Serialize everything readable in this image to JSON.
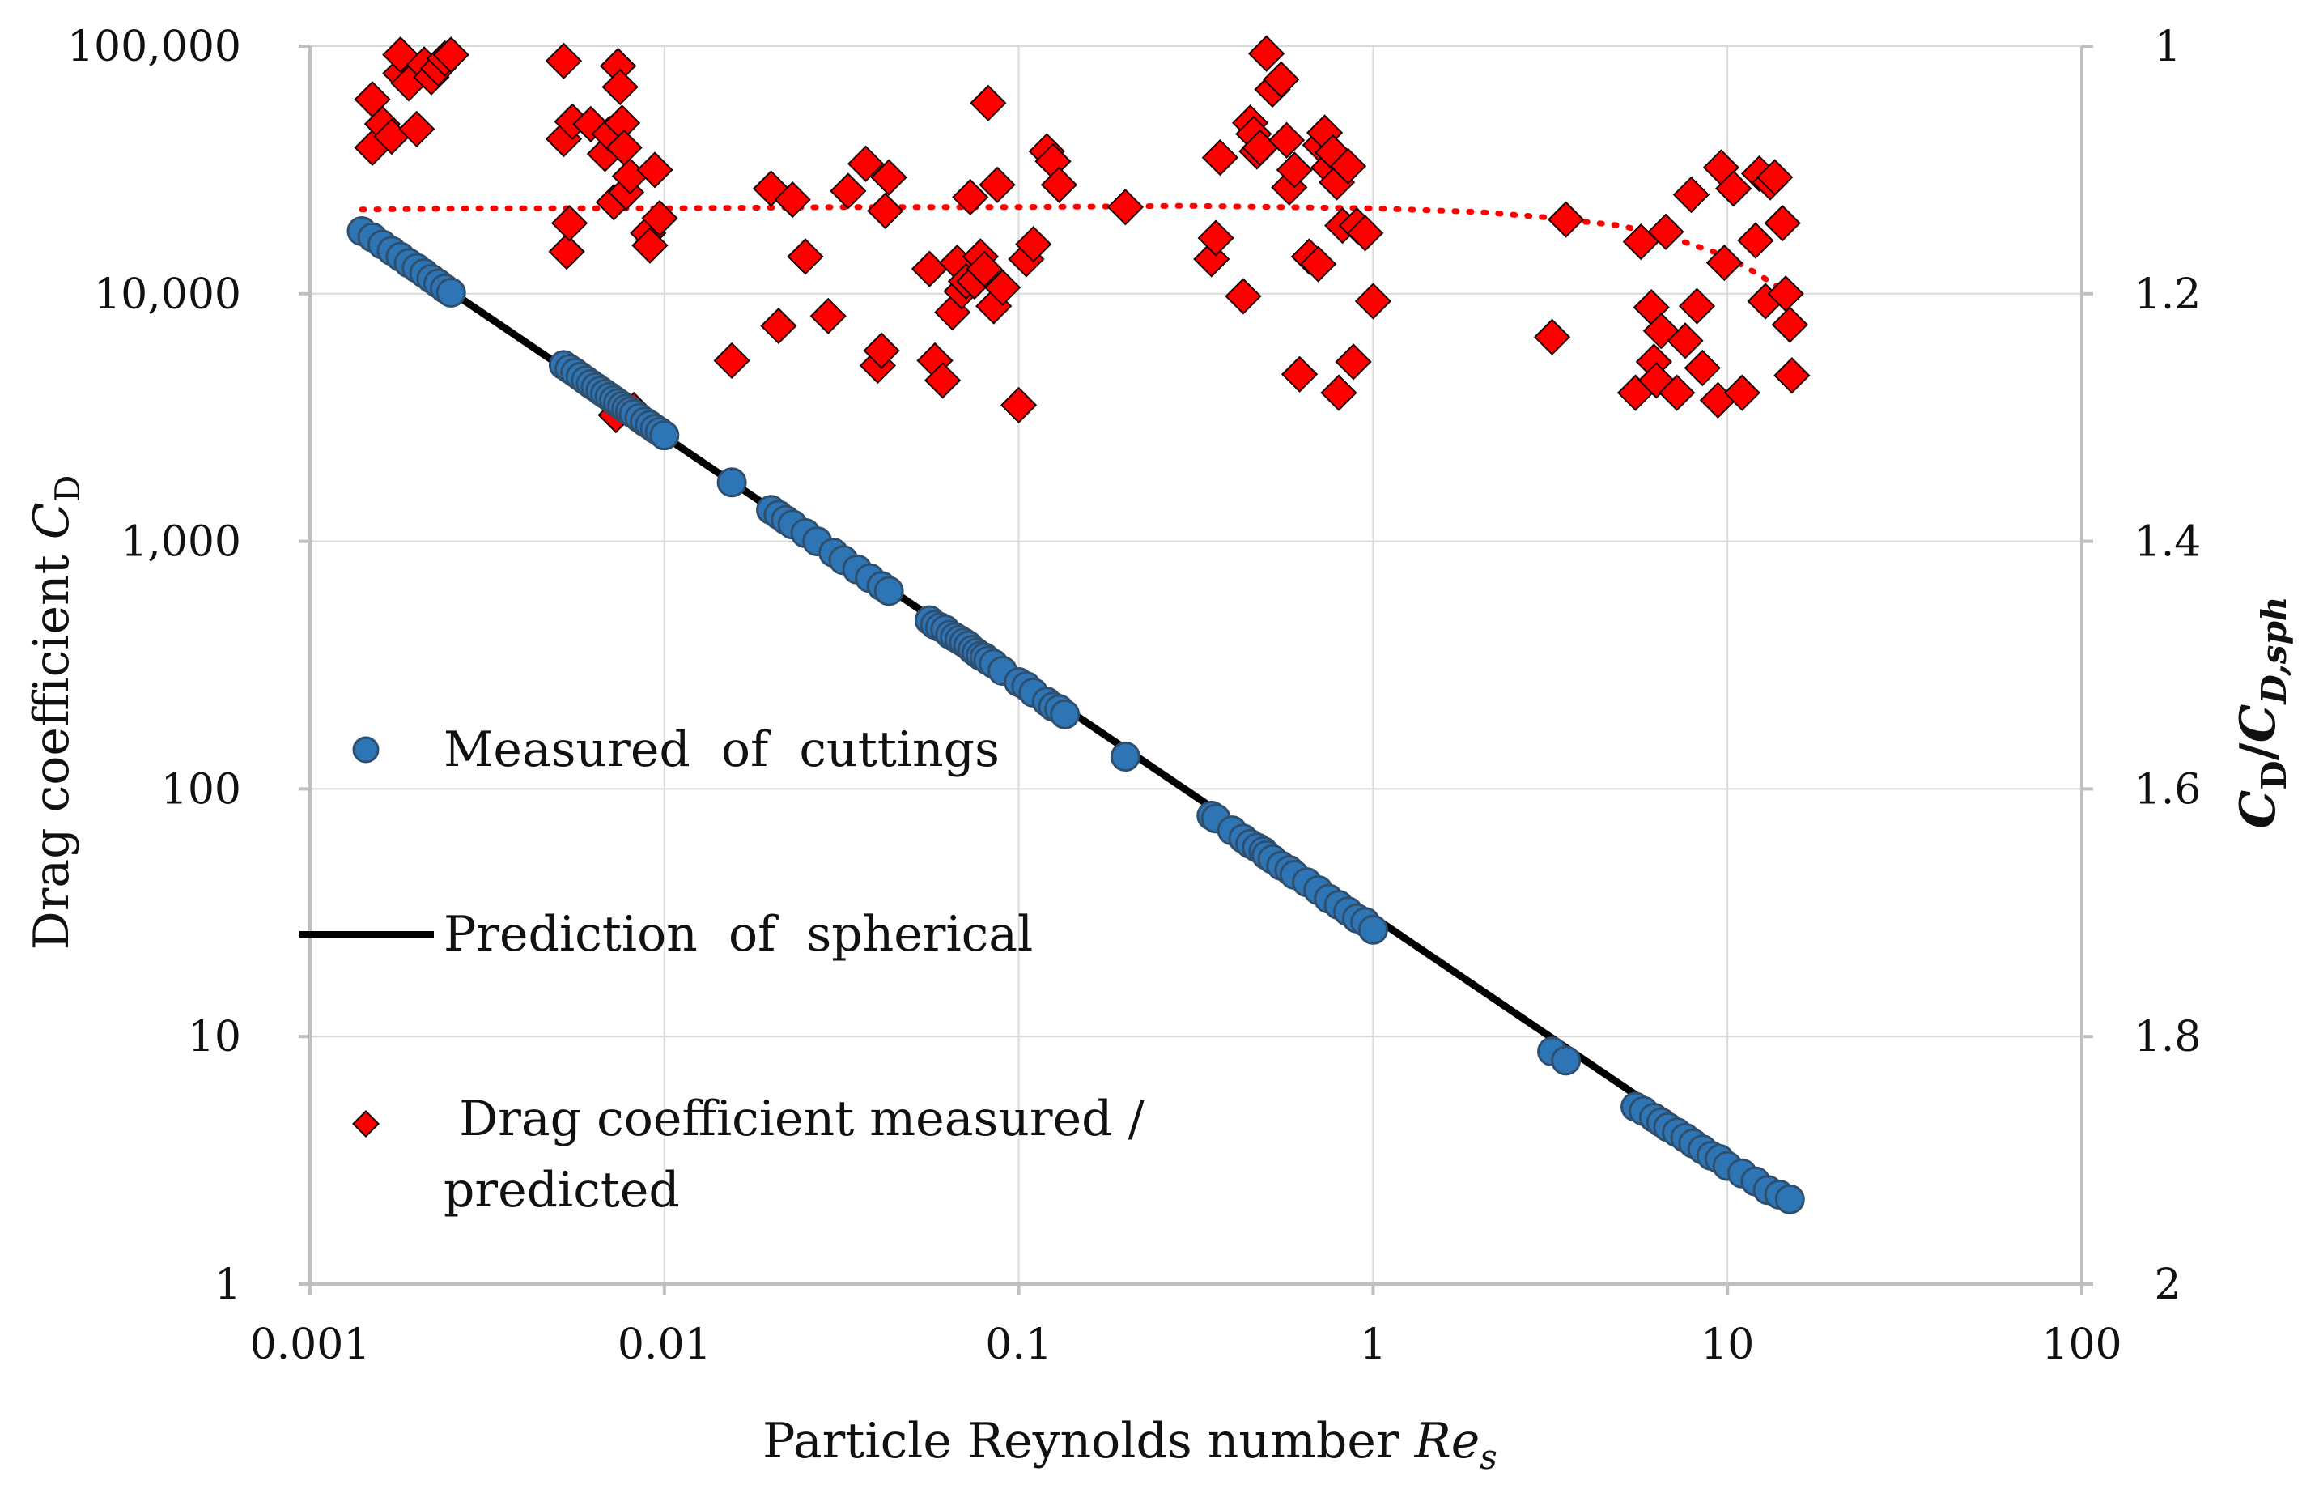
{
  "chart_data": {
    "type": "scatter",
    "title": "",
    "xlabel": {
      "prefix": "Particle Reynolds number ",
      "italic": "Re",
      "sub": "s"
    },
    "ylabel": {
      "prefix": "Drag coefficient ",
      "italic": "C",
      "sub": "D"
    },
    "y2label": {
      "a": "C",
      "a_sub": "D",
      "slash": "/",
      "b": "C",
      "b_sub": "D,sph"
    },
    "x_scale": "log",
    "xlim": [
      0.001,
      100
    ],
    "y_scale": "log",
    "ylim": [
      1,
      100000
    ],
    "y2lim": [
      1,
      2
    ],
    "y2_inverted": true,
    "grid": true,
    "legend_position": "left-center",
    "x_ticks": [
      "0.001",
      "0.01",
      "0.1",
      "1",
      "10",
      "100"
    ],
    "y_ticks": [
      "1",
      "10",
      "100",
      "1,000",
      "10,000",
      "100,000"
    ],
    "y2_ticks": [
      "1",
      "1.2",
      "1.4",
      "1.6",
      "1.8",
      "2"
    ],
    "legend": [
      {
        "name": "Measured  of  cuttings",
        "marker": "circle"
      },
      {
        "name": "Prediction  of  spherical",
        "marker": "line"
      },
      {
        "name": " Drag coefficient measured /",
        "name_line2": "predicted",
        "marker": "diamond"
      }
    ],
    "colors": {
      "circle_fill": "#2e75b6",
      "circle_edge": "#2f4f6f",
      "line": "#000000",
      "diamond_fill": "#ff0000",
      "diamond_edge": "#1a0000",
      "trend": "#ff0000",
      "grid": "#d9d9d9",
      "axis": "#bfbfbf"
    },
    "series": [
      {
        "name": "Measured  of  cuttings",
        "axis": "primary",
        "x": [
          0.0014,
          0.0015,
          0.0016,
          0.0017,
          0.0018,
          0.0019,
          0.002,
          0.0021,
          0.0022,
          0.0023,
          0.0024,
          0.0025,
          0.0052,
          0.0054,
          0.0056,
          0.0058,
          0.006,
          0.0062,
          0.0064,
          0.0066,
          0.0068,
          0.007,
          0.0072,
          0.0074,
          0.0076,
          0.0078,
          0.008,
          0.0082,
          0.0085,
          0.0088,
          0.0091,
          0.0094,
          0.0097,
          0.01,
          0.0155,
          0.02,
          0.021,
          0.022,
          0.023,
          0.025,
          0.027,
          0.03,
          0.032,
          0.035,
          0.038,
          0.041,
          0.043,
          0.056,
          0.058,
          0.06,
          0.062,
          0.064,
          0.066,
          0.068,
          0.07,
          0.072,
          0.074,
          0.076,
          0.078,
          0.08,
          0.082,
          0.085,
          0.09,
          0.1,
          0.105,
          0.11,
          0.12,
          0.125,
          0.13,
          0.135,
          0.2,
          0.35,
          0.36,
          0.4,
          0.43,
          0.45,
          0.47,
          0.49,
          0.5,
          0.52,
          0.55,
          0.58,
          0.6,
          0.65,
          0.7,
          0.75,
          0.8,
          0.85,
          0.9,
          0.95,
          1.0,
          3.2,
          3.5,
          5.5,
          5.8,
          6.2,
          6.5,
          6.8,
          7.2,
          7.6,
          8.0,
          8.5,
          9.0,
          9.5,
          10.0,
          11.0,
          12.0,
          13.0,
          14.0,
          15.0
        ],
        "y": [
          17900,
          16900,
          15800,
          14900,
          14100,
          13300,
          12700,
          12100,
          11500,
          11000,
          10500,
          10100,
          5150,
          4970,
          4800,
          4630,
          4470,
          4320,
          4190,
          4060,
          3940,
          3830,
          3720,
          3620,
          3520,
          3430,
          3350,
          3270,
          3150,
          3040,
          2950,
          2850,
          2770,
          2680,
          1730,
          1340,
          1280,
          1220,
          1170,
          1080,
          1000,
          900,
          840,
          770,
          710,
          660,
          630,
          480,
          460,
          450,
          440,
          420,
          410,
          400,
          390,
          380,
          365,
          355,
          345,
          340,
          330,
          320,
          300,
          270,
          260,
          245,
          225,
          215,
          210,
          200,
          135,
          78,
          76,
          68,
          63,
          60,
          58,
          56,
          54,
          52,
          49,
          47,
          45,
          42,
          39,
          36,
          34,
          32,
          30,
          29,
          27,
          8.7,
          8.0,
          5.2,
          5.0,
          4.7,
          4.5,
          4.3,
          4.1,
          3.9,
          3.7,
          3.5,
          3.3,
          3.2,
          3.0,
          2.8,
          2.6,
          2.4,
          2.3,
          2.2
        ]
      },
      {
        "name": "Prediction  of  spherical",
        "axis": "primary",
        "type": "line",
        "x": [
          0.0014,
          15
        ],
        "y": [
          17900,
          2.2
        ]
      },
      {
        "name": "Drag coefficient measured / predicted",
        "axis": "secondary",
        "x": [
          0.0015,
          0.0015,
          0.0016,
          0.0017,
          0.0018,
          0.0018,
          0.0019,
          0.002,
          0.0021,
          0.0022,
          0.0023,
          0.0024,
          0.0025,
          0.0052,
          0.0052,
          0.0053,
          0.0054,
          0.0055,
          0.0062,
          0.0068,
          0.007,
          0.0072,
          0.0073,
          0.0074,
          0.0075,
          0.0076,
          0.0077,
          0.0078,
          0.008,
          0.0082,
          0.009,
          0.0091,
          0.0094,
          0.0097,
          0.0155,
          0.02,
          0.021,
          0.023,
          0.025,
          0.029,
          0.033,
          0.037,
          0.04,
          0.041,
          0.042,
          0.043,
          0.056,
          0.058,
          0.061,
          0.065,
          0.067,
          0.069,
          0.071,
          0.073,
          0.075,
          0.078,
          0.08,
          0.082,
          0.085,
          0.087,
          0.09,
          0.1,
          0.105,
          0.11,
          0.12,
          0.125,
          0.13,
          0.2,
          0.35,
          0.36,
          0.37,
          0.43,
          0.45,
          0.46,
          0.47,
          0.48,
          0.5,
          0.52,
          0.55,
          0.57,
          0.58,
          0.6,
          0.62,
          0.66,
          0.7,
          0.71,
          0.73,
          0.75,
          0.77,
          0.79,
          0.8,
          0.82,
          0.85,
          0.88,
          0.9,
          0.95,
          1.0,
          3.2,
          3.5,
          5.5,
          5.7,
          6.1,
          6.2,
          6.3,
          6.5,
          6.7,
          7.2,
          7.6,
          7.9,
          8.2,
          8.5,
          9.4,
          9.6,
          9.8,
          10.4,
          11.0,
          12.0,
          12.3,
          12.8,
          13.2,
          13.6,
          14.3,
          14.6,
          15.0,
          15.2
        ],
        "y": [
          1.082,
          1.043,
          1.063,
          1.073,
          1.022,
          1.007,
          1.03,
          1.067,
          1.015,
          1.025,
          1.018,
          1.01,
          1.007,
          1.012,
          1.075,
          1.166,
          1.143,
          1.061,
          1.063,
          1.087,
          1.071,
          1.126,
          1.298,
          1.016,
          1.033,
          1.062,
          1.082,
          1.118,
          1.105,
          1.294,
          1.151,
          1.161,
          1.1,
          1.139,
          1.254,
          1.115,
          1.226,
          1.124,
          1.17,
          1.218,
          1.117,
          1.095,
          1.258,
          1.246,
          1.133,
          1.106,
          1.18,
          1.254,
          1.27,
          1.215,
          1.175,
          1.198,
          1.19,
          1.122,
          1.19,
          1.17,
          1.18,
          1.046,
          1.21,
          1.112,
          1.195,
          1.29,
          1.172,
          1.16,
          1.085,
          1.093,
          1.112,
          1.13,
          1.172,
          1.155,
          1.09,
          1.202,
          1.062,
          1.071,
          1.085,
          1.082,
          1.006,
          1.035,
          1.027,
          1.076,
          1.114,
          1.1,
          1.265,
          1.17,
          1.176,
          1.08,
          1.07,
          1.098,
          1.086,
          1.11,
          1.28,
          1.145,
          1.097,
          1.255,
          1.145,
          1.151,
          1.206,
          1.235,
          1.14,
          1.28,
          1.158,
          1.211,
          1.255,
          1.27,
          1.23,
          1.15,
          1.28,
          1.238,
          1.12,
          1.21,
          1.26,
          1.286,
          1.098,
          1.175,
          1.115,
          1.28,
          1.157,
          1.103,
          1.206,
          1.11,
          1.106,
          1.143,
          1.2,
          1.225,
          1.266
        ]
      },
      {
        "name": "trend",
        "axis": "secondary",
        "type": "dotted-line",
        "x": [
          0.0014,
          0.003,
          0.01,
          0.03,
          0.1,
          0.3,
          1,
          2,
          3,
          5,
          7,
          10,
          12,
          14,
          15
        ],
        "y": [
          1.132,
          1.131,
          1.131,
          1.13,
          1.13,
          1.129,
          1.131,
          1.134,
          1.138,
          1.145,
          1.155,
          1.17,
          1.183,
          1.195,
          1.2
        ]
      }
    ]
  }
}
